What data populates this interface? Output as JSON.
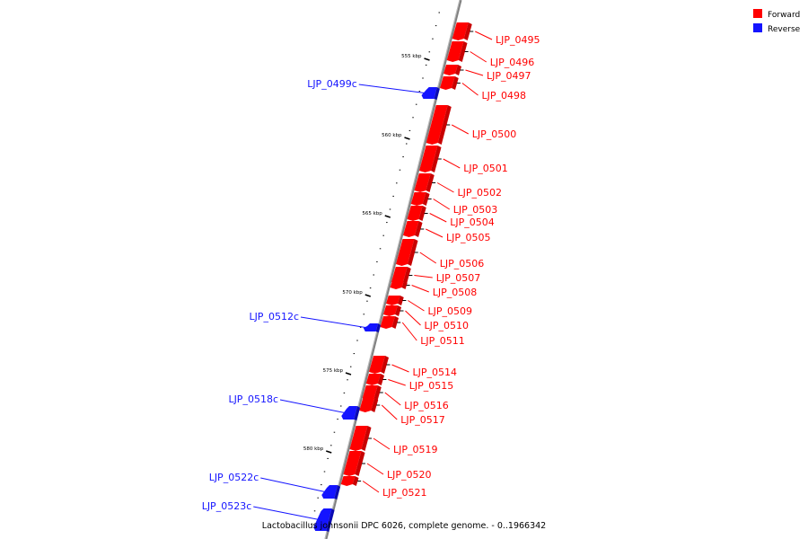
{
  "caption": "Lactobacillus johnsonii DPC 6026, complete genome. - 0..1966342",
  "legend": [
    {
      "label": "Forward",
      "color": "#ff0000"
    },
    {
      "label": "Reverse",
      "color": "#1414ff"
    }
  ],
  "colors": {
    "forward": "#ff0000",
    "reverse": "#1414ff",
    "backbone": "#808080"
  },
  "ticks": [
    "555 kbp",
    "560 kbp",
    "565 kbp",
    "570 kbp",
    "575 kbp",
    "580 kbp"
  ],
  "genes": [
    {
      "label": "LJP_0495",
      "strand": "forward"
    },
    {
      "label": "LJP_0496",
      "strand": "forward"
    },
    {
      "label": "LJP_0497",
      "strand": "forward"
    },
    {
      "label": "LJP_0498",
      "strand": "forward"
    },
    {
      "label": "LJP_0499c",
      "strand": "reverse"
    },
    {
      "label": "LJP_0500",
      "strand": "forward"
    },
    {
      "label": "LJP_0501",
      "strand": "forward"
    },
    {
      "label": "LJP_0502",
      "strand": "forward"
    },
    {
      "label": "LJP_0503",
      "strand": "forward"
    },
    {
      "label": "LJP_0504",
      "strand": "forward"
    },
    {
      "label": "LJP_0505",
      "strand": "forward"
    },
    {
      "label": "LJP_0506",
      "strand": "forward"
    },
    {
      "label": "LJP_0507",
      "strand": "forward"
    },
    {
      "label": "LJP_0508",
      "strand": "forward"
    },
    {
      "label": "LJP_0509",
      "strand": "forward"
    },
    {
      "label": "LJP_0510",
      "strand": "forward"
    },
    {
      "label": "LJP_0511",
      "strand": "forward"
    },
    {
      "label": "LJP_0512c",
      "strand": "reverse"
    },
    {
      "label": "LJP_0514",
      "strand": "forward"
    },
    {
      "label": "LJP_0515",
      "strand": "forward"
    },
    {
      "label": "LJP_0516",
      "strand": "forward"
    },
    {
      "label": "LJP_0517",
      "strand": "forward"
    },
    {
      "label": "LJP_0518c",
      "strand": "reverse"
    },
    {
      "label": "LJP_0519",
      "strand": "forward"
    },
    {
      "label": "LJP_0520",
      "strand": "forward"
    },
    {
      "label": "LJP_0521",
      "strand": "forward"
    },
    {
      "label": "LJP_0522c",
      "strand": "reverse"
    },
    {
      "label": "LJP_0523c",
      "strand": "reverse"
    }
  ]
}
